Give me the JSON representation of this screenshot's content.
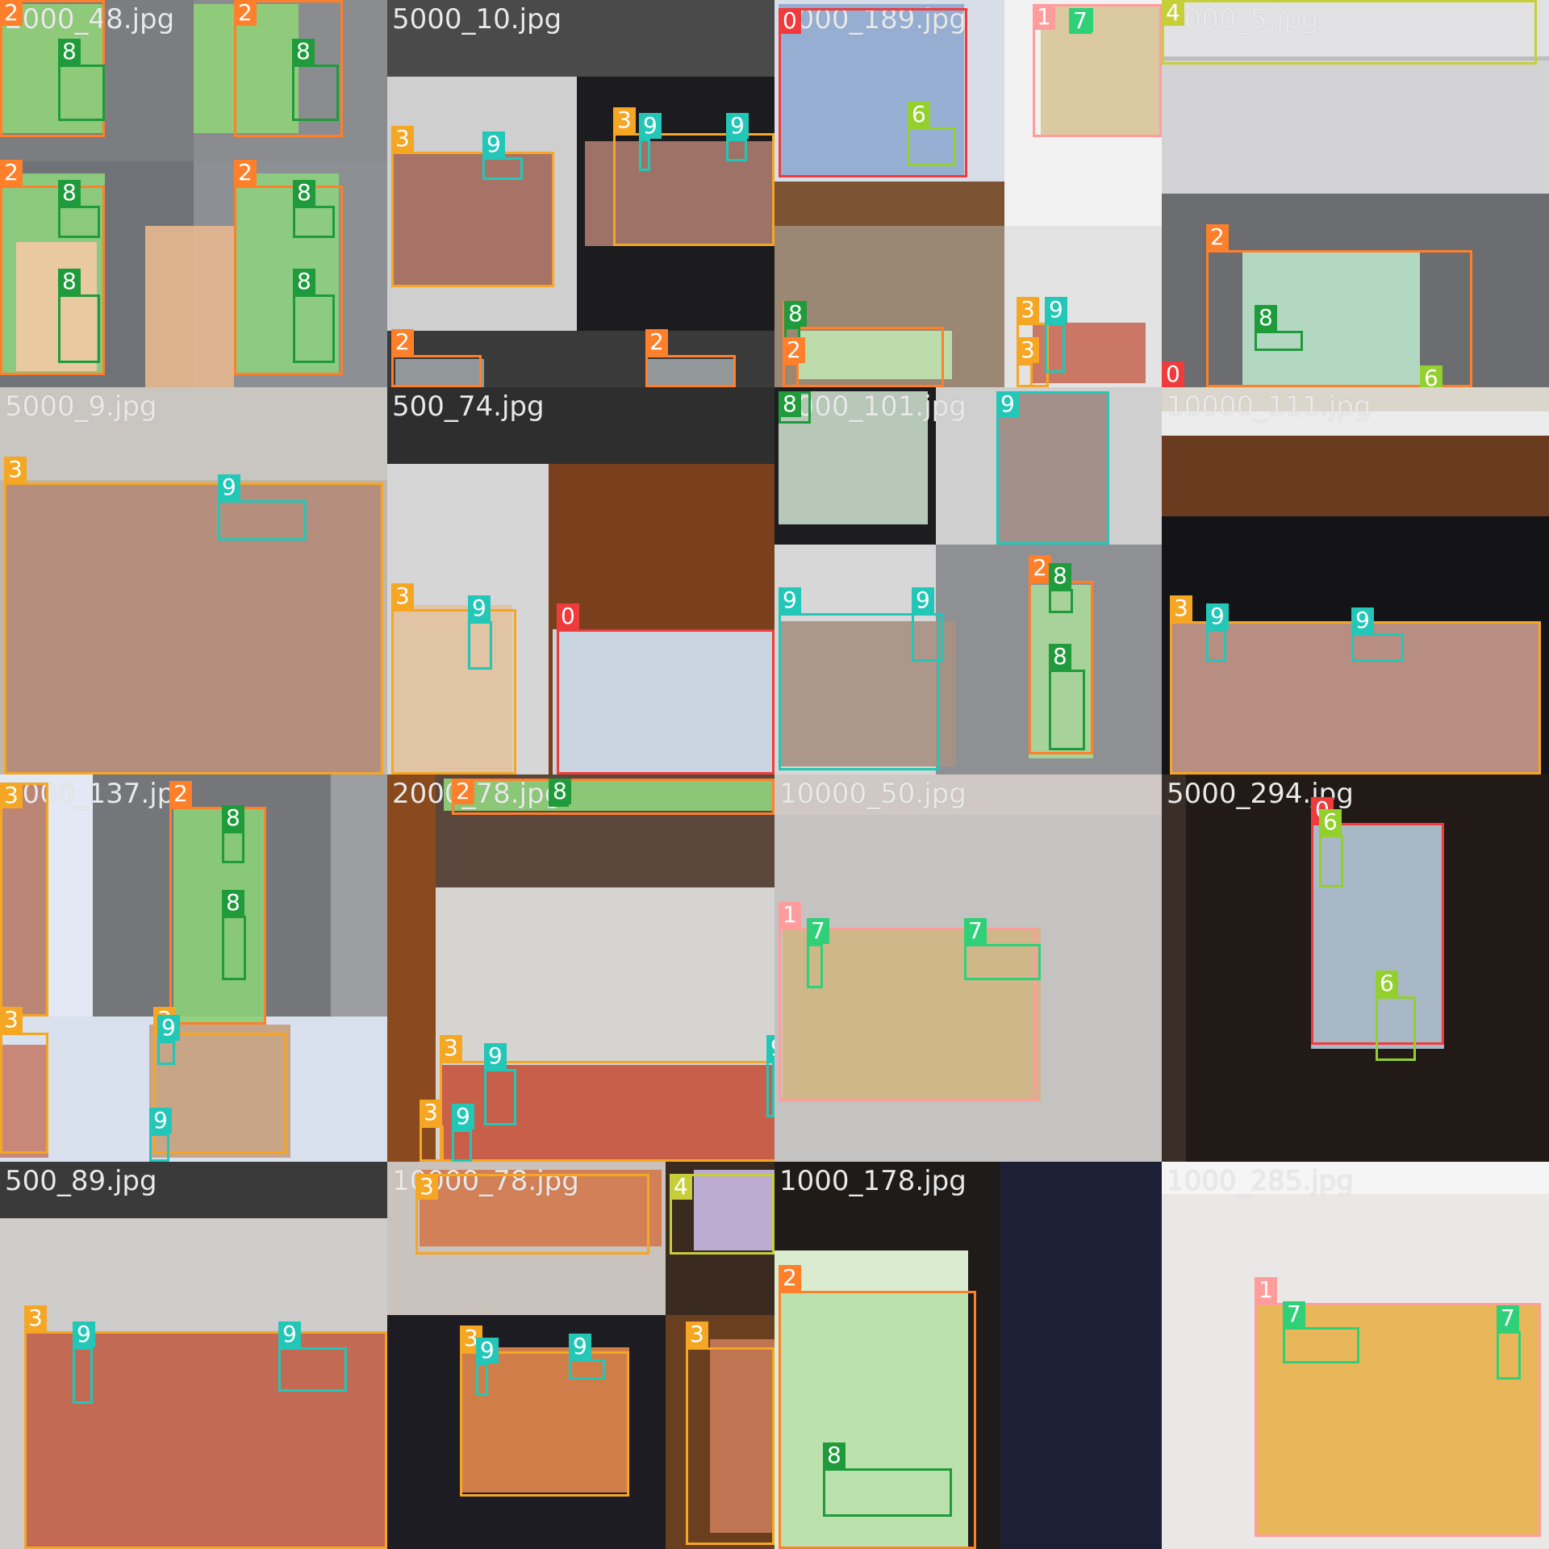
{
  "class_colors": {
    "0": "#ef3b3b",
    "1": "#ff9d9d",
    "2": "#ff7f2a",
    "3": "#f5a623",
    "4": "#c6cf3a",
    "6": "#93d02e",
    "7": "#2fd078",
    "8": "#1f9b3c",
    "9": "#22c7b8"
  },
  "tiles": [
    {
      "filename": "2000_48.jpg",
      "boxes": [
        {
          "cls": "2",
          "label": "2"
        },
        {
          "cls": "8",
          "label": "8"
        },
        {
          "cls": "2",
          "label": "2"
        },
        {
          "cls": "8",
          "label": "8"
        },
        {
          "cls": "2",
          "label": "2"
        },
        {
          "cls": "8",
          "label": "8"
        },
        {
          "cls": "8",
          "label": "8"
        },
        {
          "cls": "2",
          "label": "2"
        },
        {
          "cls": "8",
          "label": "8"
        },
        {
          "cls": "8",
          "label": "8"
        }
      ]
    },
    {
      "filename": "5000_10.jpg",
      "boxes": [
        {
          "cls": "3",
          "label": "3"
        },
        {
          "cls": "9",
          "label": "9"
        },
        {
          "cls": "3",
          "label": "3"
        },
        {
          "cls": "9",
          "label": "9"
        },
        {
          "cls": "9",
          "label": "9"
        },
        {
          "cls": "2",
          "label": "2"
        },
        {
          "cls": "2",
          "label": "2"
        }
      ]
    },
    {
      "filename": "0000_189.jpg",
      "boxes": [
        {
          "cls": "0",
          "label": "0"
        },
        {
          "cls": "6",
          "label": "6"
        },
        {
          "cls": "1",
          "label": "1"
        },
        {
          "cls": "7",
          "label": "7"
        },
        {
          "cls": "2",
          "label": "2"
        },
        {
          "cls": "8",
          "label": "8"
        },
        {
          "cls": "2",
          "label": "2"
        },
        {
          "cls": "3",
          "label": "3"
        },
        {
          "cls": "9",
          "label": "9"
        },
        {
          "cls": "3",
          "label": "3"
        }
      ]
    },
    {
      "filename": "4000_5.jpg",
      "boxes": [
        {
          "cls": "4",
          "label": "4"
        },
        {
          "cls": "2",
          "label": "2"
        },
        {
          "cls": "8",
          "label": "8"
        },
        {
          "cls": "0",
          "label": "0"
        },
        {
          "cls": "6",
          "label": "6"
        }
      ]
    },
    {
      "filename": "5000_9.jpg",
      "boxes": [
        {
          "cls": "3",
          "label": "3"
        },
        {
          "cls": "9",
          "label": "9"
        }
      ]
    },
    {
      "filename": "500_74.jpg",
      "boxes": [
        {
          "cls": "3",
          "label": "3"
        },
        {
          "cls": "9",
          "label": "9"
        },
        {
          "cls": "0",
          "label": "0"
        }
      ]
    },
    {
      "filename": "1000_101.jpg",
      "boxes": [
        {
          "cls": "8",
          "label": "8"
        },
        {
          "cls": "9",
          "label": "9"
        },
        {
          "cls": "9",
          "label": "9"
        },
        {
          "cls": "9",
          "label": "9"
        },
        {
          "cls": "2",
          "label": "2"
        },
        {
          "cls": "8",
          "label": "8"
        },
        {
          "cls": "8",
          "label": "8"
        }
      ]
    },
    {
      "filename": "10000_111.jpg",
      "boxes": [
        {
          "cls": "3",
          "label": "3"
        },
        {
          "cls": "9",
          "label": "9"
        },
        {
          "cls": "9",
          "label": "9"
        }
      ]
    },
    {
      "filename": "3000_137.jpg",
      "boxes": [
        {
          "cls": "3",
          "label": "3"
        },
        {
          "cls": "2",
          "label": "2"
        },
        {
          "cls": "8",
          "label": "8"
        },
        {
          "cls": "8",
          "label": "8"
        },
        {
          "cls": "3",
          "label": "3"
        },
        {
          "cls": "3",
          "label": "3"
        },
        {
          "cls": "9",
          "label": "9"
        },
        {
          "cls": "9",
          "label": "9"
        }
      ]
    },
    {
      "filename": "2000_78.jpg",
      "boxes": [
        {
          "cls": "2",
          "label": "2"
        },
        {
          "cls": "8",
          "label": "8"
        },
        {
          "cls": "3",
          "label": "3"
        },
        {
          "cls": "9",
          "label": "9"
        },
        {
          "cls": "9",
          "label": "9"
        },
        {
          "cls": "3",
          "label": "3"
        },
        {
          "cls": "9",
          "label": "9"
        }
      ]
    },
    {
      "filename": "10000_50.jpg",
      "boxes": [
        {
          "cls": "1",
          "label": "1"
        },
        {
          "cls": "7",
          "label": "7"
        },
        {
          "cls": "7",
          "label": "7"
        }
      ]
    },
    {
      "filename": "5000_294.jpg",
      "boxes": [
        {
          "cls": "0",
          "label": "0"
        },
        {
          "cls": "6",
          "label": "6"
        },
        {
          "cls": "6",
          "label": "6"
        }
      ]
    },
    {
      "filename": "500_89.jpg",
      "boxes": [
        {
          "cls": "3",
          "label": "3"
        },
        {
          "cls": "9",
          "label": "9"
        },
        {
          "cls": "9",
          "label": "9"
        }
      ]
    },
    {
      "filename": "10000_78.jpg",
      "boxes": [
        {
          "cls": "3",
          "label": "3"
        },
        {
          "cls": "4",
          "label": "4"
        },
        {
          "cls": "3",
          "label": "3"
        },
        {
          "cls": "9",
          "label": "9"
        },
        {
          "cls": "9",
          "label": "9"
        },
        {
          "cls": "3",
          "label": "3"
        }
      ]
    },
    {
      "filename": "1000_178.jpg",
      "boxes": [
        {
          "cls": "2",
          "label": "2"
        },
        {
          "cls": "8",
          "label": "8"
        }
      ]
    },
    {
      "filename": "1000_285.jpg",
      "boxes": [
        {
          "cls": "1",
          "label": "1"
        },
        {
          "cls": "7",
          "label": "7"
        },
        {
          "cls": "7",
          "label": "7"
        }
      ]
    }
  ]
}
